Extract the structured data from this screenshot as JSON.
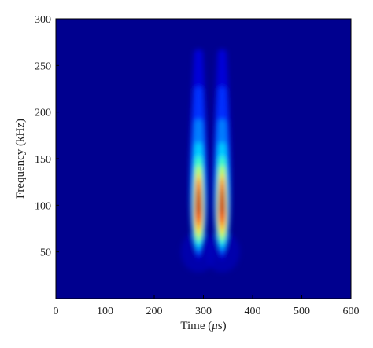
{
  "chart_data": {
    "type": "heatmap",
    "title": "",
    "xlabel": "Time (μs)",
    "xlabel_parts": {
      "prefix": "Time (",
      "symbol": "μ",
      "suffix": "s)"
    },
    "ylabel": "Frequency (kHz)",
    "xlim": [
      0,
      600
    ],
    "ylim": [
      0,
      300
    ],
    "x_ticks": [
      0,
      100,
      200,
      300,
      400,
      500,
      600
    ],
    "y_ticks": [
      50,
      100,
      150,
      200,
      250,
      300
    ],
    "colormap": "jet",
    "background_color": "#00008f",
    "peaks": [
      {
        "time": 290,
        "frequency": 105,
        "intensity": 1.0
      },
      {
        "time": 338,
        "frequency": 105,
        "intensity": 0.98
      }
    ],
    "grid": false,
    "legend": "none"
  }
}
